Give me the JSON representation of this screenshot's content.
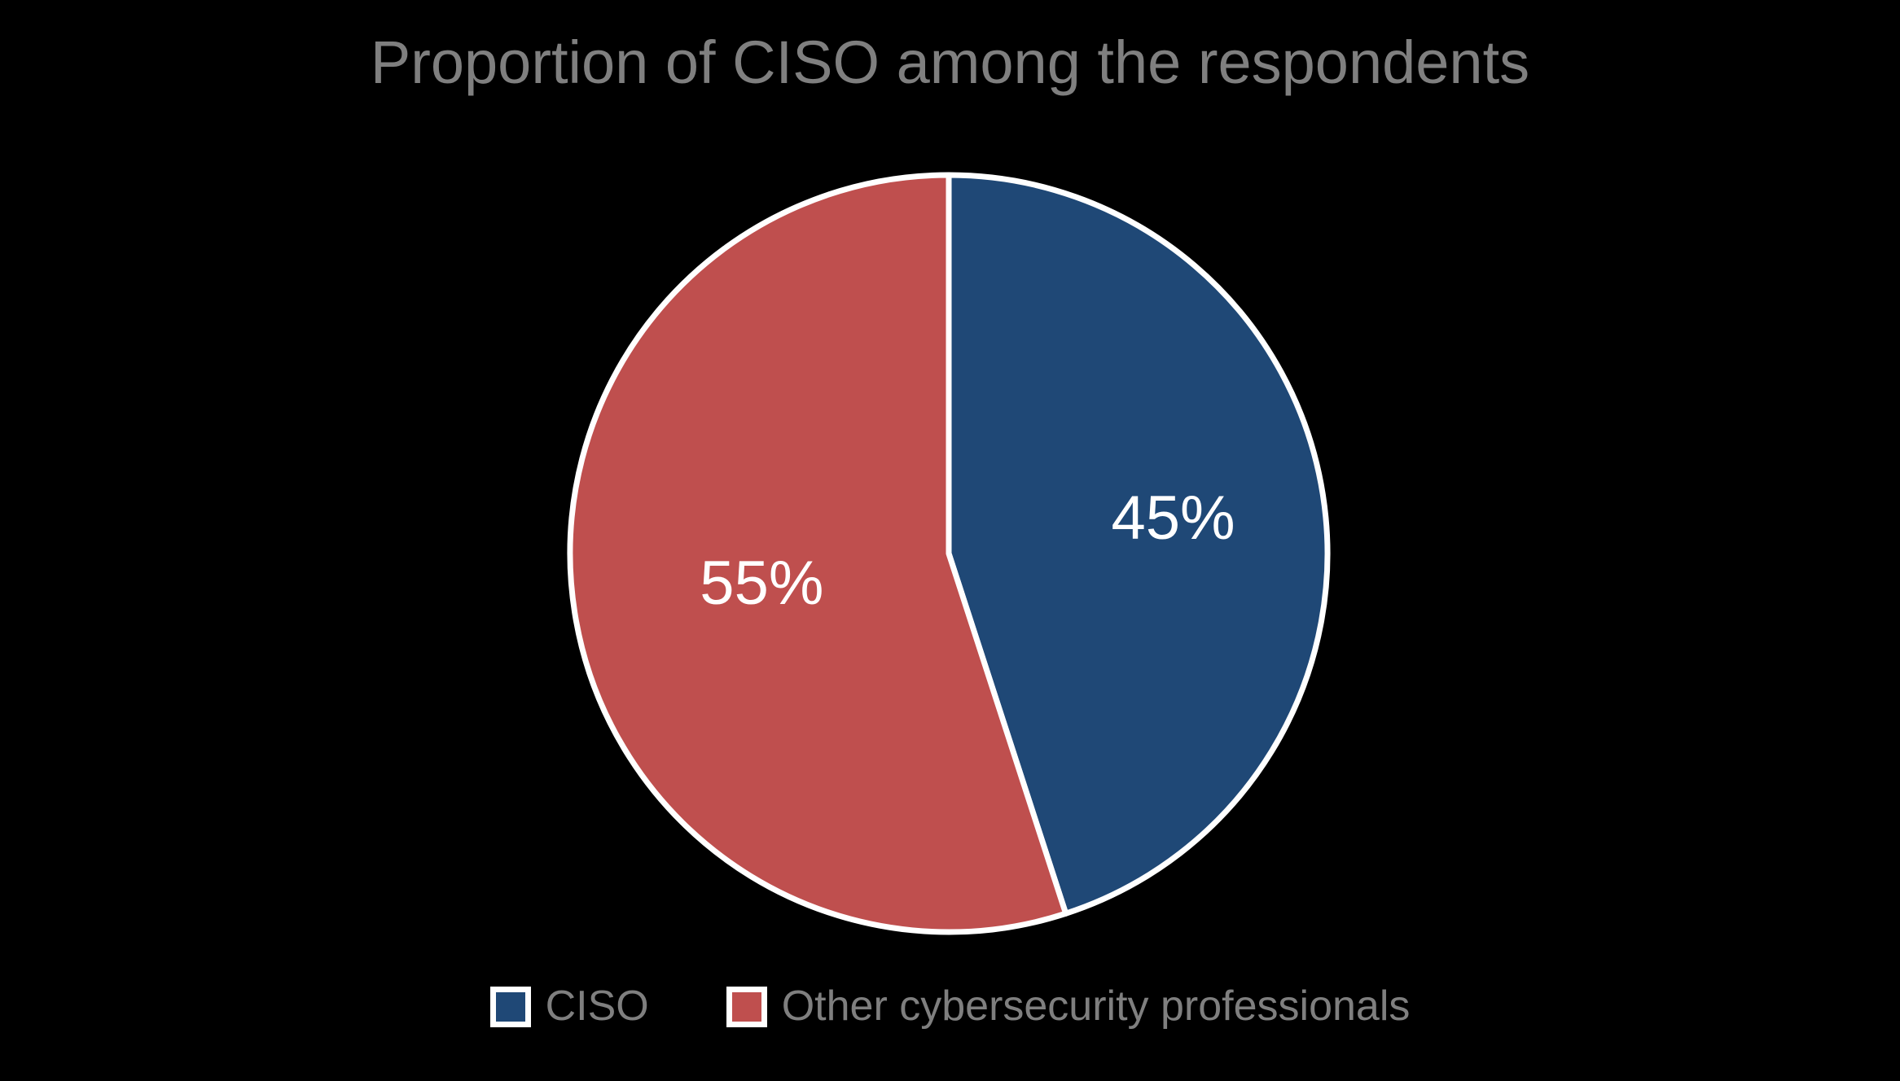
{
  "background_color": "#000000",
  "chart_data": {
    "type": "pie",
    "title": "Proportion of CISO among the respondents",
    "title_color": "#7F7F7F",
    "start_angle_deg": 0,
    "direction": "clockwise",
    "slice_border_color": "#FFFFFF",
    "slice_label_color": "#FFFFFF",
    "legend_position": "bottom",
    "legend_text_color": "#7F7F7F",
    "series": [
      {
        "label": "CISO",
        "value": 45,
        "display_value": "45%",
        "color": "#1F4876"
      },
      {
        "label": "Other cybersecurity professionals",
        "value": 55,
        "display_value": "55%",
        "color": "#BF4F4E"
      }
    ]
  }
}
